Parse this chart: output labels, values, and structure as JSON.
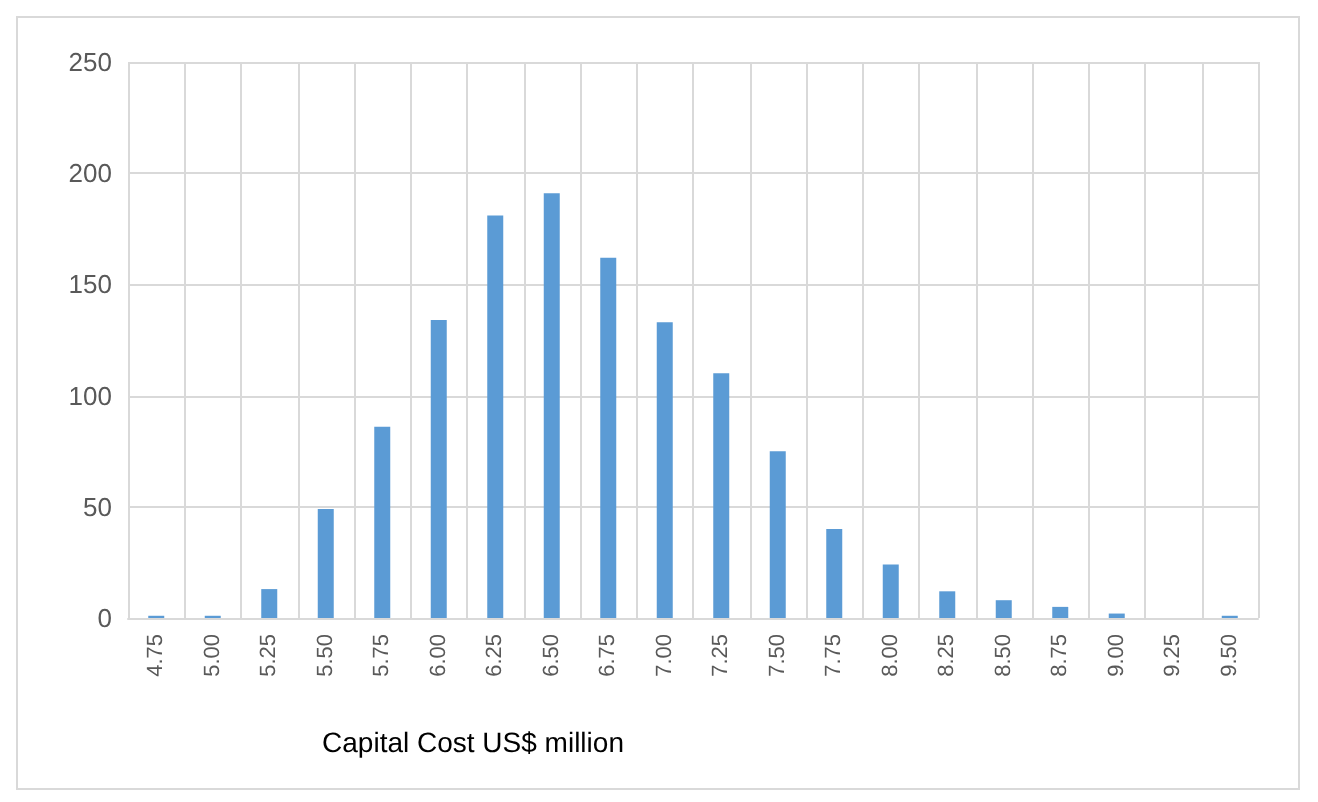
{
  "chart_data": {
    "type": "bar",
    "xlabel": "Capital Cost US$ million",
    "categories": [
      "4.75",
      "5.00",
      "5.25",
      "5.50",
      "5.75",
      "6.00",
      "6.25",
      "6.50",
      "6.75",
      "7.00",
      "7.25",
      "7.50",
      "7.75",
      "8.00",
      "8.25",
      "8.50",
      "8.75",
      "9.00",
      "9.25",
      "9.50"
    ],
    "values": [
      1,
      1,
      13,
      49,
      86,
      134,
      181,
      191,
      162,
      133,
      110,
      75,
      40,
      24,
      12,
      8,
      5,
      2,
      0,
      1
    ],
    "color": "#5b9bd5",
    "ylim": [
      0,
      250
    ],
    "yticks": [
      0,
      50,
      100,
      150,
      200,
      250
    ],
    "grid": true
  }
}
